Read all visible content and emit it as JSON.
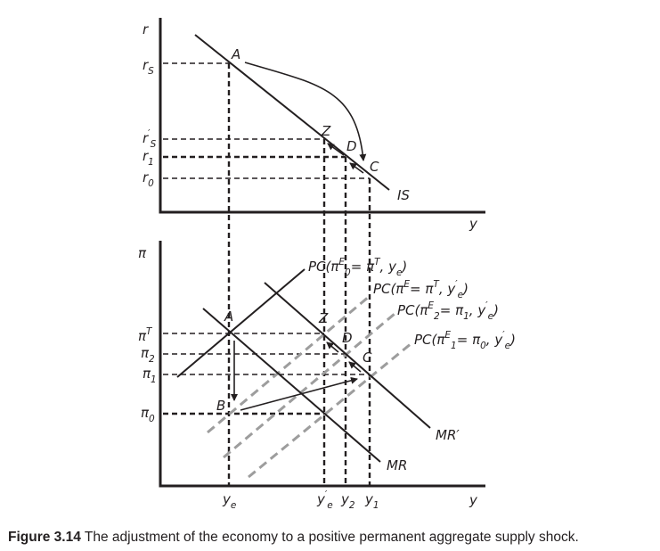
{
  "diagram": {
    "top_panel": {
      "y_axis_label": "r",
      "x_axis_label": "y",
      "curve_label": "IS",
      "ticks": {
        "rS": [
          {
            "t": "r"
          },
          {
            "t": "S",
            "sub": 1
          }
        ],
        "rS_prime": [
          {
            "t": "r"
          },
          {
            "t": "′",
            "sup": 1
          },
          {
            "t": "S",
            "sub": 1
          }
        ],
        "r1": [
          {
            "t": "r"
          },
          {
            "t": "1",
            "sub": 1
          }
        ],
        "r0": [
          {
            "t": "r"
          },
          {
            "t": "0",
            "sub": 1
          }
        ]
      },
      "points": {
        "A": "A",
        "Z": "Z",
        "D": "D",
        "C": "C"
      }
    },
    "bottom_panel": {
      "y_axis_label": "π",
      "x_axis_label": "y",
      "curves": {
        "MR": "MR",
        "MR_prime": "MR′"
      },
      "ticks_y": {
        "piT": [
          {
            "t": "π"
          },
          {
            "t": "T",
            "sup": 1
          }
        ],
        "pi2": [
          {
            "t": "π"
          },
          {
            "t": "2",
            "sub": 1
          }
        ],
        "pi1": [
          {
            "t": "π"
          },
          {
            "t": "1",
            "sub": 1
          }
        ],
        "pi0": [
          {
            "t": "π"
          },
          {
            "t": "0",
            "sub": 1
          }
        ]
      },
      "ticks_x": {
        "ye": [
          {
            "t": "y"
          },
          {
            "t": "e",
            "sub": 1
          }
        ],
        "ye_prime": [
          {
            "t": "y"
          },
          {
            "t": "′",
            "sup": 1
          },
          {
            "t": "e",
            "sub": 1
          }
        ],
        "y2": [
          {
            "t": "y"
          },
          {
            "t": "2",
            "sub": 1
          }
        ],
        "y1": [
          {
            "t": "y"
          },
          {
            "t": "1",
            "sub": 1
          }
        ]
      },
      "pc_labels": {
        "pc0": [
          {
            "t": "PC(π"
          },
          {
            "t": "E",
            "sup": 1
          },
          {
            "t": "0",
            "sub": 1
          },
          {
            "t": "= π"
          },
          {
            "t": "T",
            "sup": 1
          },
          {
            "t": ", y"
          },
          {
            "t": "e",
            "sub": 1
          },
          {
            "t": ")"
          }
        ],
        "pc_new": [
          {
            "t": "PC(π"
          },
          {
            "t": "E",
            "sup": 1
          },
          {
            "t": "= π"
          },
          {
            "t": "T",
            "sup": 1
          },
          {
            "t": ", y"
          },
          {
            "t": "′",
            "sup": 1
          },
          {
            "t": "e",
            "sub": 1
          },
          {
            "t": ")"
          }
        ],
        "pc2": [
          {
            "t": "PC(π"
          },
          {
            "t": "E",
            "sup": 1
          },
          {
            "t": "2",
            "sub": 1
          },
          {
            "t": "= π"
          },
          {
            "t": "1",
            "sub": 1
          },
          {
            "t": ", y"
          },
          {
            "t": "′",
            "sup": 1
          },
          {
            "t": "e",
            "sub": 1
          },
          {
            "t": ")"
          }
        ],
        "pc1": [
          {
            "t": "PC(π"
          },
          {
            "t": "E",
            "sup": 1
          },
          {
            "t": "1",
            "sub": 1
          },
          {
            "t": "= π"
          },
          {
            "t": "0",
            "sub": 1
          },
          {
            "t": ", y"
          },
          {
            "t": "′",
            "sup": 1
          },
          {
            "t": "e",
            "sub": 1
          },
          {
            "t": ")"
          }
        ]
      },
      "points": {
        "A": "A",
        "B": "B",
        "Z": "Z",
        "D": "D",
        "C": "C"
      }
    },
    "colors": {
      "ink": "#231f20",
      "shifted_pc": "#9d9d9d"
    }
  },
  "caption": {
    "number": "Figure 3.14",
    "text": " The adjustment of the economy to a positive permanent aggregate supply shock."
  }
}
